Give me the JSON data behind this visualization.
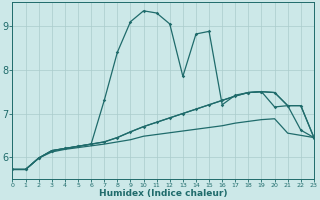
{
  "xlabel": "Humidex (Indice chaleur)",
  "bg_color": "#cce8e8",
  "line_color": "#1f6b6b",
  "grid_color": "#aacccc",
  "xlim": [
    0,
    23
  ],
  "ylim": [
    5.5,
    9.55
  ],
  "yticks": [
    6,
    7,
    8,
    9
  ],
  "xticks": [
    0,
    1,
    2,
    3,
    4,
    5,
    6,
    7,
    8,
    9,
    10,
    11,
    12,
    13,
    14,
    15,
    16,
    17,
    18,
    19,
    20,
    21,
    22,
    23
  ],
  "curves": [
    {
      "x": [
        0,
        1,
        2,
        3,
        4,
        5,
        6,
        7,
        8,
        9,
        10,
        11,
        12,
        13,
        14,
        15,
        16,
        17,
        18,
        19,
        20,
        21,
        22,
        23
      ],
      "y": [
        5.72,
        5.72,
        5.98,
        6.12,
        6.18,
        6.22,
        6.26,
        6.3,
        6.35,
        6.4,
        6.48,
        6.52,
        6.56,
        6.6,
        6.64,
        6.68,
        6.72,
        6.78,
        6.82,
        6.86,
        6.88,
        6.55,
        6.5,
        6.45
      ],
      "markers": false,
      "lw": 0.9
    },
    {
      "x": [
        0,
        1,
        2,
        3,
        4,
        5,
        6,
        7,
        8,
        9,
        10,
        11,
        12,
        13,
        14,
        15,
        16,
        17,
        18,
        19,
        20,
        21,
        22,
        23
      ],
      "y": [
        5.72,
        5.72,
        5.98,
        6.15,
        6.2,
        6.25,
        6.3,
        6.35,
        6.45,
        6.58,
        6.7,
        6.8,
        6.9,
        7.0,
        7.1,
        7.2,
        7.3,
        7.4,
        7.48,
        7.5,
        7.48,
        7.18,
        7.18,
        6.45
      ],
      "markers": false,
      "lw": 0.9
    },
    {
      "x": [
        0,
        1,
        2,
        3,
        4,
        5,
        6,
        7,
        8,
        9,
        10,
        11,
        12,
        13,
        14,
        15,
        16,
        17,
        18,
        19,
        20,
        21,
        22,
        23
      ],
      "y": [
        5.72,
        5.72,
        5.98,
        6.15,
        6.2,
        6.25,
        6.3,
        7.3,
        8.4,
        9.1,
        9.35,
        9.3,
        9.05,
        7.85,
        8.82,
        8.88,
        7.2,
        7.42,
        7.48,
        7.5,
        7.48,
        7.18,
        6.62,
        6.45
      ],
      "markers": true,
      "lw": 0.9
    },
    {
      "x": [
        0,
        1,
        2,
        3,
        4,
        5,
        6,
        7,
        8,
        9,
        10,
        11,
        12,
        13,
        14,
        15,
        16,
        17,
        18,
        19,
        20,
        21,
        22,
        23
      ],
      "y": [
        5.72,
        5.72,
        5.98,
        6.15,
        6.2,
        6.25,
        6.3,
        6.35,
        6.45,
        6.58,
        6.7,
        6.8,
        6.9,
        7.0,
        7.1,
        7.2,
        7.3,
        7.4,
        7.48,
        7.5,
        7.15,
        7.18,
        7.18,
        6.45
      ],
      "markers": true,
      "lw": 0.9
    }
  ]
}
